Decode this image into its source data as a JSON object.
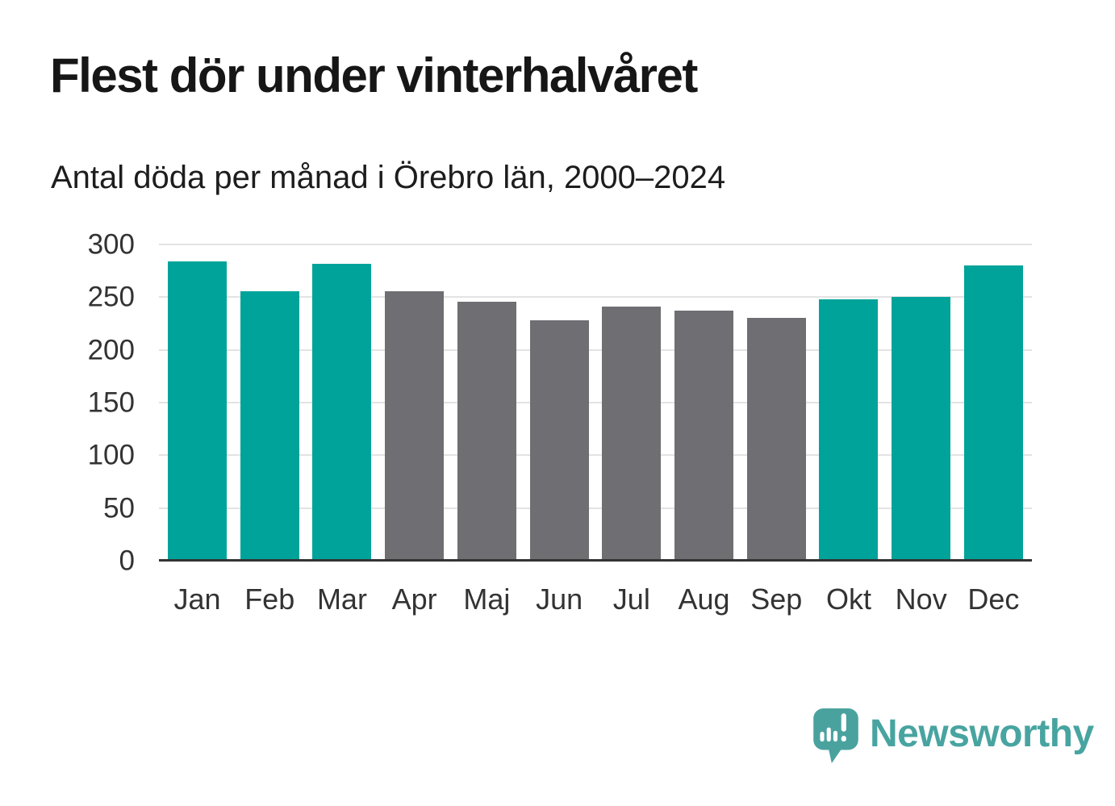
{
  "header": {
    "title": "Flest dör under vinterhalvåret",
    "subtitle": "Antal döda per månad i Örebro län, 2000–2024"
  },
  "chart_data": {
    "type": "bar",
    "title": "Flest dör under vinterhalvåret",
    "subtitle": "Antal döda per månad i Örebro län, 2000–2024",
    "categories": [
      "Jan",
      "Feb",
      "Mar",
      "Apr",
      "Maj",
      "Jun",
      "Jul",
      "Aug",
      "Sep",
      "Okt",
      "Nov",
      "Dec"
    ],
    "values": [
      284,
      256,
      282,
      256,
      246,
      228,
      241,
      237,
      230,
      248,
      250,
      280
    ],
    "bar_colors": [
      "teal",
      "teal",
      "teal",
      "gray",
      "gray",
      "gray",
      "gray",
      "gray",
      "gray",
      "teal",
      "teal",
      "teal"
    ],
    "palette": {
      "teal": "#00a39a",
      "gray": "#6e6e73"
    },
    "xlabel": "",
    "ylabel": "",
    "ylim": [
      0,
      300
    ],
    "yticks": [
      0,
      50,
      100,
      150,
      200,
      250,
      300
    ],
    "grid": "horizontal-only",
    "legend": "none",
    "baseline_color": "#333333",
    "gridline_color": "#e3e3e3"
  },
  "branding": {
    "name": "Newsworthy",
    "color": "#48a4a0"
  }
}
